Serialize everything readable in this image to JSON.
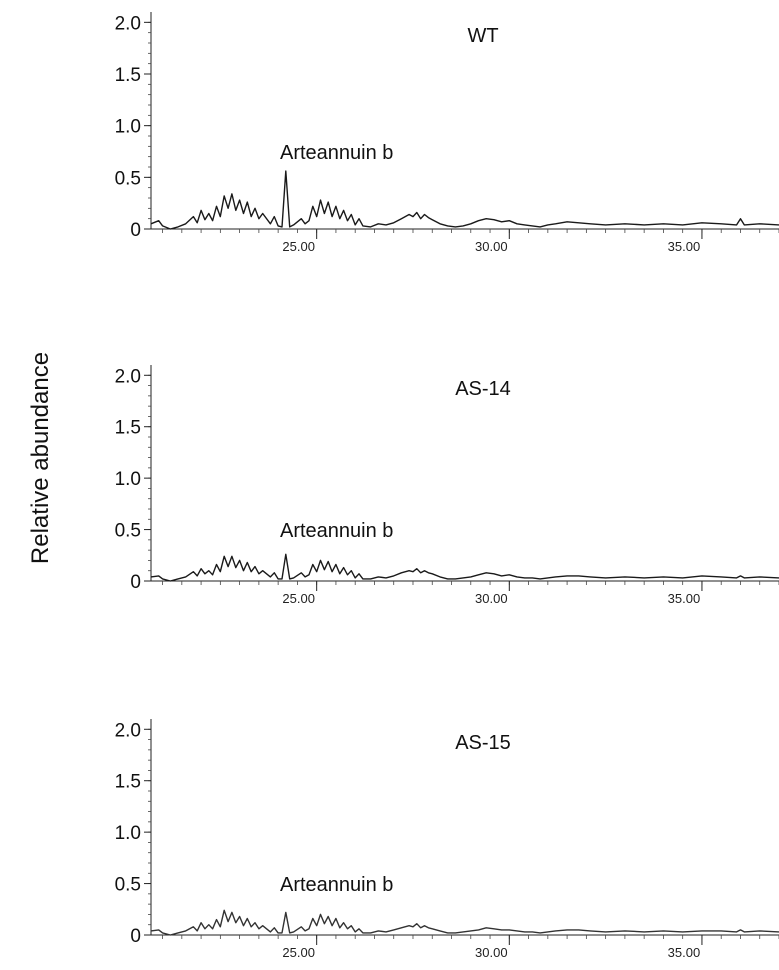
{
  "figure": {
    "ylabel": "Relative abundance"
  },
  "chart_data": [
    {
      "type": "line",
      "title": "WT",
      "annotation": "Arteannuin b",
      "annotation_x": 24.2,
      "ylabel": "Relative abundance",
      "xlim": [
        20.7,
        37.0
      ],
      "ylim": [
        0,
        2.1
      ],
      "yticks": [
        "0",
        "0.5",
        "1.0",
        "1.5",
        "2.0"
      ],
      "ytick_values": [
        0,
        0.5,
        1.0,
        1.5,
        2.0
      ],
      "xticks": [
        "25.00",
        "30.00",
        "35.00"
      ],
      "xtick_values": [
        25,
        30,
        35
      ],
      "grid": false,
      "color": "#1a1a1a",
      "series": [
        {
          "x": [
            20.7,
            20.9,
            21.0,
            21.2,
            21.4,
            21.6,
            21.8,
            21.9,
            22.0,
            22.1,
            22.2,
            22.3,
            22.4,
            22.5,
            22.6,
            22.7,
            22.8,
            22.9,
            23.0,
            23.1,
            23.2,
            23.3,
            23.4,
            23.5,
            23.6,
            23.8,
            23.9,
            24.0,
            24.1,
            24.2,
            24.3,
            24.4,
            24.6,
            24.7,
            24.8,
            24.9,
            25.0,
            25.1,
            25.2,
            25.3,
            25.4,
            25.5,
            25.6,
            25.7,
            25.8,
            25.9,
            26.0,
            26.1,
            26.2,
            26.4,
            26.6,
            26.8,
            27.0,
            27.2,
            27.4,
            27.5,
            27.6,
            27.7,
            27.8,
            27.9,
            28.0,
            28.2,
            28.4,
            28.6,
            28.8,
            29.0,
            29.2,
            29.4,
            29.6,
            29.8,
            30.0,
            30.2,
            30.4,
            30.6,
            30.8,
            31.0,
            31.2,
            31.5,
            31.8,
            32.1,
            32.5,
            33.0,
            33.5,
            34.0,
            34.5,
            35.0,
            35.5,
            35.9,
            36.0,
            36.1,
            36.5,
            37.0
          ],
          "y": [
            0.05,
            0.08,
            0.03,
            0.0,
            0.02,
            0.05,
            0.12,
            0.06,
            0.18,
            0.09,
            0.15,
            0.08,
            0.22,
            0.12,
            0.32,
            0.2,
            0.34,
            0.18,
            0.28,
            0.15,
            0.26,
            0.12,
            0.2,
            0.1,
            0.15,
            0.05,
            0.12,
            0.03,
            0.02,
            0.56,
            0.02,
            0.04,
            0.1,
            0.05,
            0.08,
            0.22,
            0.12,
            0.28,
            0.15,
            0.26,
            0.12,
            0.22,
            0.1,
            0.18,
            0.08,
            0.14,
            0.04,
            0.1,
            0.03,
            0.02,
            0.05,
            0.04,
            0.06,
            0.1,
            0.14,
            0.12,
            0.16,
            0.1,
            0.14,
            0.11,
            0.09,
            0.05,
            0.03,
            0.02,
            0.03,
            0.05,
            0.08,
            0.1,
            0.09,
            0.07,
            0.08,
            0.05,
            0.04,
            0.03,
            0.02,
            0.04,
            0.05,
            0.07,
            0.06,
            0.05,
            0.04,
            0.05,
            0.04,
            0.05,
            0.04,
            0.06,
            0.05,
            0.04,
            0.1,
            0.04,
            0.05,
            0.04
          ]
        }
      ]
    },
    {
      "type": "line",
      "title": "AS-14",
      "annotation": "Arteannuin b",
      "annotation_x": 24.2,
      "ylabel": "Relative abundance",
      "xlim": [
        20.7,
        37.0
      ],
      "ylim": [
        0,
        2.1
      ],
      "yticks": [
        "0",
        "0.5",
        "1.0",
        "1.5",
        "2.0"
      ],
      "ytick_values": [
        0,
        0.5,
        1.0,
        1.5,
        2.0
      ],
      "xticks": [
        "25.00",
        "30.00",
        "35.00"
      ],
      "xtick_values": [
        25,
        30,
        35
      ],
      "grid": false,
      "color": "#1a1a1a",
      "series": [
        {
          "x": [
            20.7,
            20.9,
            21.0,
            21.2,
            21.4,
            21.6,
            21.8,
            21.9,
            22.0,
            22.1,
            22.2,
            22.3,
            22.4,
            22.5,
            22.6,
            22.7,
            22.8,
            22.9,
            23.0,
            23.1,
            23.2,
            23.3,
            23.4,
            23.5,
            23.6,
            23.8,
            23.9,
            24.0,
            24.1,
            24.2,
            24.3,
            24.4,
            24.6,
            24.7,
            24.8,
            24.9,
            25.0,
            25.1,
            25.2,
            25.3,
            25.4,
            25.5,
            25.6,
            25.7,
            25.8,
            25.9,
            26.0,
            26.1,
            26.2,
            26.4,
            26.6,
            26.8,
            27.0,
            27.2,
            27.4,
            27.5,
            27.6,
            27.7,
            27.8,
            27.9,
            28.0,
            28.2,
            28.4,
            28.6,
            28.8,
            29.0,
            29.2,
            29.4,
            29.6,
            29.8,
            30.0,
            30.2,
            30.4,
            30.6,
            30.8,
            31.0,
            31.2,
            31.5,
            31.8,
            32.1,
            32.5,
            33.0,
            33.5,
            34.0,
            34.5,
            35.0,
            35.5,
            35.9,
            36.0,
            36.1,
            36.5,
            37.0
          ],
          "y": [
            0.04,
            0.05,
            0.02,
            0.0,
            0.02,
            0.04,
            0.09,
            0.05,
            0.12,
            0.07,
            0.1,
            0.06,
            0.16,
            0.09,
            0.24,
            0.14,
            0.24,
            0.13,
            0.2,
            0.1,
            0.18,
            0.09,
            0.14,
            0.07,
            0.1,
            0.04,
            0.08,
            0.02,
            0.02,
            0.26,
            0.02,
            0.03,
            0.08,
            0.04,
            0.06,
            0.16,
            0.09,
            0.2,
            0.11,
            0.19,
            0.09,
            0.16,
            0.07,
            0.13,
            0.06,
            0.1,
            0.03,
            0.07,
            0.02,
            0.02,
            0.04,
            0.03,
            0.05,
            0.08,
            0.1,
            0.09,
            0.12,
            0.08,
            0.1,
            0.08,
            0.07,
            0.04,
            0.02,
            0.02,
            0.03,
            0.04,
            0.06,
            0.08,
            0.07,
            0.05,
            0.06,
            0.04,
            0.03,
            0.03,
            0.02,
            0.03,
            0.04,
            0.05,
            0.05,
            0.04,
            0.03,
            0.04,
            0.03,
            0.04,
            0.03,
            0.05,
            0.04,
            0.03,
            0.05,
            0.03,
            0.04,
            0.03
          ]
        }
      ]
    },
    {
      "type": "line",
      "title": "AS-15",
      "annotation": "Arteannuin b",
      "annotation_x": 24.2,
      "ylabel": "Relative abundance",
      "xlim": [
        20.7,
        37.0
      ],
      "ylim": [
        0,
        2.1
      ],
      "yticks": [
        "0",
        "0.5",
        "1.0",
        "1.5",
        "2.0"
      ],
      "ytick_values": [
        0,
        0.5,
        1.0,
        1.5,
        2.0
      ],
      "xticks": [
        "25.00",
        "30.00",
        "35.00"
      ],
      "xtick_values": [
        25,
        30,
        35
      ],
      "grid": false,
      "color": "#333333",
      "series": [
        {
          "x": [
            20.7,
            20.9,
            21.0,
            21.2,
            21.4,
            21.6,
            21.8,
            21.9,
            22.0,
            22.1,
            22.2,
            22.3,
            22.4,
            22.5,
            22.6,
            22.7,
            22.8,
            22.9,
            23.0,
            23.1,
            23.2,
            23.3,
            23.4,
            23.5,
            23.6,
            23.8,
            23.9,
            24.0,
            24.1,
            24.2,
            24.3,
            24.4,
            24.6,
            24.7,
            24.8,
            24.9,
            25.0,
            25.1,
            25.2,
            25.3,
            25.4,
            25.5,
            25.6,
            25.7,
            25.8,
            25.9,
            26.0,
            26.1,
            26.2,
            26.4,
            26.6,
            26.8,
            27.0,
            27.2,
            27.4,
            27.5,
            27.6,
            27.7,
            27.8,
            27.9,
            28.0,
            28.2,
            28.4,
            28.6,
            28.8,
            29.0,
            29.2,
            29.4,
            29.6,
            29.8,
            30.0,
            30.2,
            30.4,
            30.6,
            30.8,
            31.0,
            31.2,
            31.5,
            31.8,
            32.1,
            32.5,
            33.0,
            33.5,
            34.0,
            34.5,
            35.0,
            35.5,
            35.9,
            36.0,
            36.1,
            36.5,
            37.0
          ],
          "y": [
            0.04,
            0.05,
            0.02,
            0.0,
            0.02,
            0.04,
            0.08,
            0.04,
            0.12,
            0.06,
            0.1,
            0.06,
            0.15,
            0.08,
            0.24,
            0.13,
            0.22,
            0.12,
            0.18,
            0.09,
            0.16,
            0.08,
            0.12,
            0.06,
            0.09,
            0.03,
            0.07,
            0.02,
            0.02,
            0.22,
            0.02,
            0.03,
            0.08,
            0.04,
            0.06,
            0.16,
            0.09,
            0.2,
            0.11,
            0.18,
            0.09,
            0.16,
            0.07,
            0.12,
            0.06,
            0.09,
            0.03,
            0.06,
            0.02,
            0.02,
            0.04,
            0.03,
            0.05,
            0.07,
            0.09,
            0.08,
            0.11,
            0.07,
            0.09,
            0.07,
            0.06,
            0.04,
            0.02,
            0.02,
            0.03,
            0.04,
            0.05,
            0.07,
            0.06,
            0.05,
            0.05,
            0.04,
            0.03,
            0.03,
            0.02,
            0.03,
            0.04,
            0.05,
            0.05,
            0.04,
            0.03,
            0.04,
            0.03,
            0.04,
            0.03,
            0.04,
            0.04,
            0.03,
            0.05,
            0.03,
            0.04,
            0.03
          ]
        }
      ]
    }
  ]
}
